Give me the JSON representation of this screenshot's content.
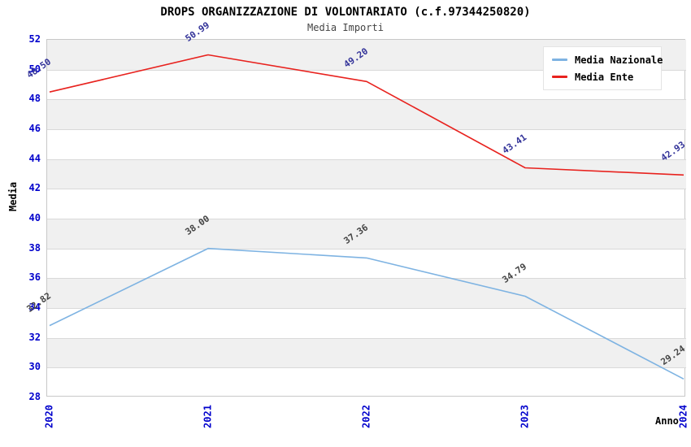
{
  "title": "DROPS ORGANIZZAZIONE DI VOLONTARIATO (c.f.97344250820)",
  "subtitle": "Media Importi",
  "chart_data": {
    "type": "line",
    "x": [
      "2020",
      "2021",
      "2022",
      "2023",
      "2024"
    ],
    "series": [
      {
        "name": "Media Nazionale",
        "color": "#7eb3e2",
        "label_color": "#444444",
        "values": [
          32.82,
          38.0,
          37.36,
          34.79,
          29.24
        ]
      },
      {
        "name": "Media Ente",
        "color": "#e8221e",
        "label_color": "#333399",
        "values": [
          48.5,
          50.99,
          49.2,
          43.41,
          42.93
        ]
      }
    ],
    "title": "DROPS ORGANIZZAZIONE DI VOLONTARIATO (c.f.97344250820)",
    "subtitle": "Media Importi",
    "xlabel": "Anno",
    "ylabel": "Media",
    "ylim": [
      28,
      52
    ],
    "ytick_step": 2,
    "grid": "horizontal-bands-alternating",
    "legend_position": "top-right"
  },
  "colors": {
    "tick_label": "#0000cc",
    "band_fill": "#f0f0f0",
    "gridline": "#d9d9d9",
    "plot_border": "#c8c8c8",
    "title_text": "#000000",
    "subtitle_text": "#444444",
    "legend_bg": "#ffffff"
  }
}
